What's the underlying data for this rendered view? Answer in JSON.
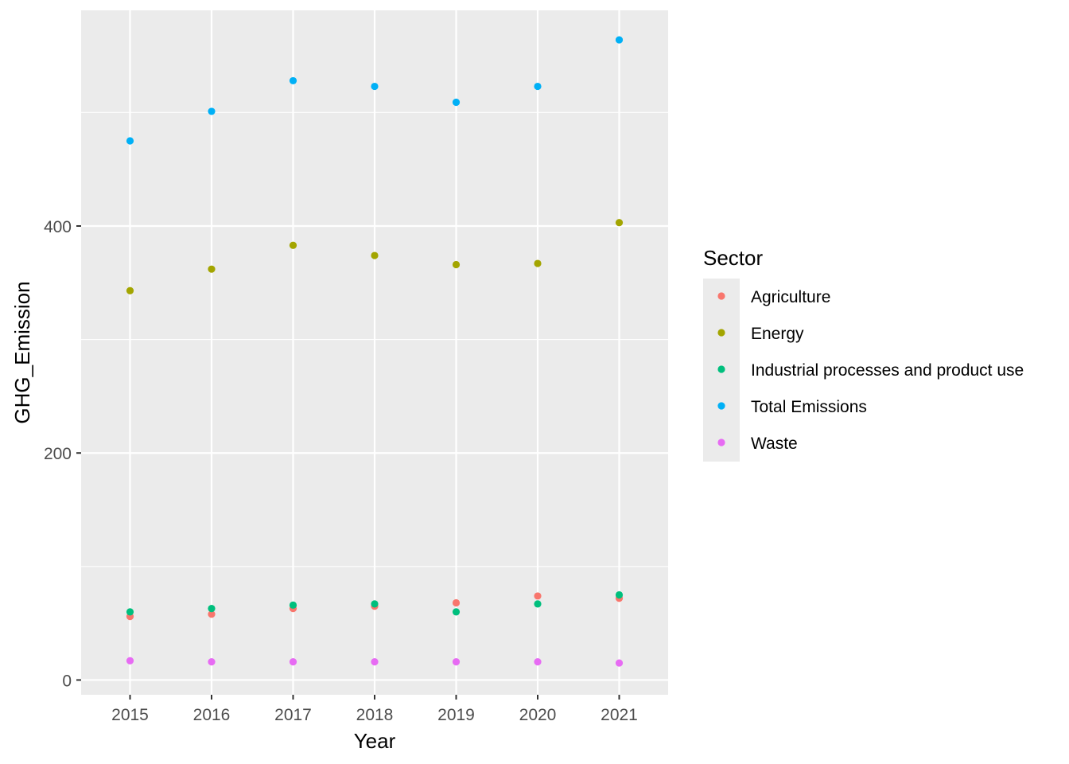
{
  "chart_data": {
    "type": "scatter",
    "title": "",
    "xlabel": "Year",
    "ylabel": "GHG_Emission",
    "x": [
      2015,
      2016,
      2017,
      2018,
      2019,
      2020,
      2021
    ],
    "xlim": [
      2014.4,
      2021.6
    ],
    "ylim": [
      -13,
      590
    ],
    "yticks": [
      0,
      200,
      400
    ],
    "ytick_labels": [
      "0",
      "200",
      "400"
    ],
    "yminor": [
      100,
      300,
      500
    ],
    "grid": true,
    "background": "#EBEBEB",
    "legend": {
      "title": "Sector",
      "position": "right"
    },
    "series": [
      {
        "name": "Agriculture",
        "color": "#F8766D",
        "values": [
          56,
          58,
          63,
          65,
          68,
          74,
          72
        ]
      },
      {
        "name": "Energy",
        "color": "#A3A500",
        "values": [
          343,
          362,
          383,
          374,
          366,
          367,
          403
        ]
      },
      {
        "name": "Industrial processes and product use",
        "color": "#00BF7D",
        "values": [
          60,
          63,
          66,
          67,
          60,
          67,
          75
        ]
      },
      {
        "name": "Total Emissions",
        "color": "#00B0F6",
        "values": [
          475,
          501,
          528,
          523,
          509,
          523,
          564
        ]
      },
      {
        "name": "Waste",
        "color": "#E76BF3",
        "values": [
          17,
          16,
          16,
          16,
          16,
          16,
          15
        ]
      }
    ]
  }
}
